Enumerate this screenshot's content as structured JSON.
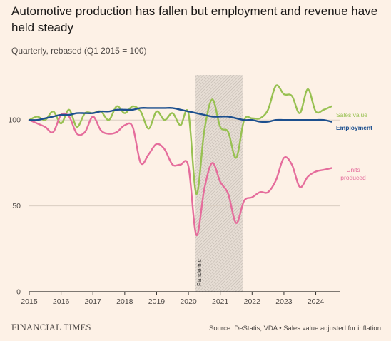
{
  "chart_data": {
    "type": "line",
    "title": "Automotive production has fallen but employment and revenue have held steady",
    "subtitle": "Quarterly, rebased (Q1 2015 = 100)",
    "xlabel": "",
    "ylabel": "",
    "xlim": [
      2015,
      2024.75
    ],
    "ylim": [
      0,
      130
    ],
    "x_ticks": [
      "2015",
      "2016",
      "2017",
      "2018",
      "2019",
      "2020",
      "2021",
      "2022",
      "2023",
      "2024"
    ],
    "y_ticks": [
      "0",
      "50",
      "100"
    ],
    "grid": true,
    "legend": "inline labels at line ends (right)",
    "shaded_region": {
      "label": "Pandemic",
      "x0": 2020.2,
      "x1": 2021.7
    },
    "x": [
      2015.0,
      2015.25,
      2015.5,
      2015.75,
      2016.0,
      2016.25,
      2016.5,
      2016.75,
      2017.0,
      2017.25,
      2017.5,
      2017.75,
      2018.0,
      2018.25,
      2018.5,
      2018.75,
      2019.0,
      2019.25,
      2019.5,
      2019.75,
      2020.0,
      2020.25,
      2020.5,
      2020.75,
      2021.0,
      2021.25,
      2021.5,
      2021.75,
      2022.0,
      2022.25,
      2022.5,
      2022.75,
      2023.0,
      2023.25,
      2023.5,
      2023.75,
      2024.0,
      2024.25,
      2024.5
    ],
    "series": [
      {
        "name": "Sales value",
        "color": "#98c152",
        "values": [
          100,
          102,
          100,
          105,
          98,
          106,
          96,
          104,
          104,
          105,
          100,
          108,
          104,
          108,
          105,
          95,
          105,
          100,
          104,
          97,
          104,
          57,
          94,
          112,
          96,
          93,
          78,
          100,
          101,
          101,
          106,
          120,
          115,
          114,
          104,
          118,
          105,
          106,
          108
        ]
      },
      {
        "name": "Employment",
        "color": "#1c4f8e",
        "values": [
          100,
          100,
          101,
          102,
          103,
          103,
          104,
          104,
          104,
          105,
          105,
          106,
          106,
          106,
          107,
          107,
          107,
          107,
          107,
          106,
          105,
          104,
          103,
          102,
          102,
          102,
          101,
          100,
          100,
          99,
          99,
          100,
          100,
          100,
          100,
          100,
          100,
          100,
          99
        ]
      },
      {
        "name": "Units produced",
        "color": "#e56d9c",
        "values": [
          100,
          98,
          96,
          93,
          103,
          102,
          92,
          93,
          102,
          94,
          92,
          93,
          97,
          96,
          75,
          80,
          86,
          83,
          74,
          74,
          73,
          33,
          60,
          75,
          64,
          57,
          40,
          53,
          55,
          58,
          58,
          65,
          78,
          74,
          61,
          67,
          70,
          71,
          72
        ]
      }
    ]
  },
  "annotations": {
    "sales_label": "Sales value",
    "employment_label": "Employment",
    "units_label_line1": "Units",
    "units_label_line2": "produced",
    "pandemic_label": "Pandemic"
  },
  "colors": {
    "background": "#fdf1e6",
    "axis": "#33302e",
    "grid": "#d9cdc1",
    "shade_stroke": "#bcb3aa"
  },
  "footer": {
    "brand": "FINANCIAL TIMES",
    "source": "Source: DeStatis, VDA • Sales value adjusted for inflation"
  }
}
